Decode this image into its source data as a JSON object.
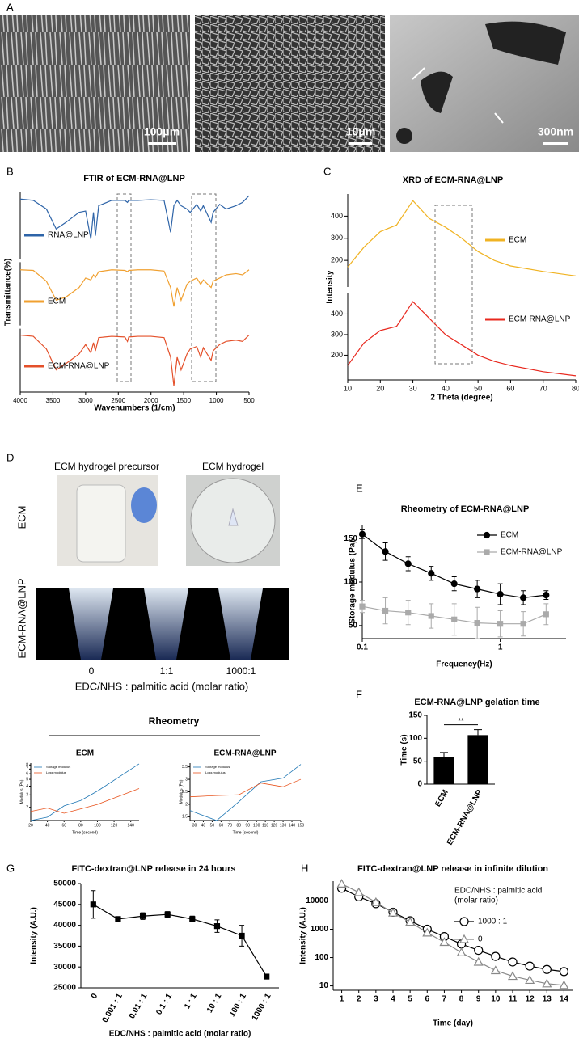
{
  "panel_labels": [
    "A",
    "B",
    "C",
    "D",
    "E",
    "F",
    "G",
    "H"
  ],
  "images": {
    "scale_bars": [
      "100μm",
      "10μm",
      "300nm"
    ],
    "photo_titles": [
      "ECM hydrogel precursor",
      "ECM hydrogel"
    ],
    "row_labels": [
      "ECM",
      "ECM-RNA@LNP"
    ],
    "tube_labels": [
      "0",
      "1:1",
      "1000:1"
    ],
    "tube_caption": "EDC/NHS : palmitic acid (molar ratio)",
    "section_title": "Rheometry"
  },
  "chart_data": [
    {
      "type": "line",
      "subplots": true,
      "title": "FTIR of ECM-RNA@LNP",
      "xlabel": "Wavenumbers (1/cm)",
      "ylabel": "Transmittance(%)",
      "xlim": [
        4000,
        500
      ],
      "xticks": [
        4000,
        3500,
        3000,
        2500,
        2000,
        1500,
        1000,
        500
      ],
      "ylim": [
        0,
        100
      ],
      "x": [
        4000,
        3800,
        3600,
        3450,
        3300,
        3100,
        3000,
        2920,
        2880,
        2850,
        2800,
        2600,
        2400,
        2360,
        2340,
        2200,
        2000,
        1800,
        1700,
        1650,
        1600,
        1540,
        1450,
        1400,
        1300,
        1240,
        1200,
        1080,
        1050,
        950,
        850,
        700,
        600,
        500
      ],
      "series": [
        {
          "name": "RNA@LNP",
          "color": "#2e64a8",
          "values": [
            90,
            88,
            75,
            45,
            55,
            70,
            72,
            30,
            70,
            35,
            80,
            88,
            88,
            85,
            88,
            88,
            89,
            88,
            40,
            80,
            88,
            80,
            75,
            70,
            82,
            72,
            80,
            55,
            70,
            82,
            75,
            80,
            85,
            95
          ]
        },
        {
          "name": "ECM",
          "color": "#f0a030",
          "values": [
            88,
            87,
            70,
            40,
            45,
            60,
            75,
            72,
            80,
            76,
            85,
            88,
            87,
            85,
            87,
            88,
            88,
            86,
            60,
            30,
            60,
            40,
            65,
            70,
            75,
            65,
            72,
            60,
            70,
            75,
            80,
            82,
            80,
            88
          ]
        },
        {
          "name": "ECM-RNA@LNP",
          "color": "#e4502a",
          "values": [
            90,
            88,
            68,
            35,
            45,
            60,
            75,
            62,
            78,
            65,
            86,
            88,
            87,
            80,
            87,
            88,
            88,
            86,
            55,
            10,
            55,
            35,
            60,
            68,
            72,
            55,
            70,
            50,
            65,
            75,
            80,
            82,
            80,
            90
          ]
        }
      ]
    },
    {
      "type": "line",
      "subplots": true,
      "title": "XRD of ECM-RNA@LNP",
      "xlabel": "2 Theta (degree)",
      "ylabel": "Intensity",
      "xlim": [
        10,
        80
      ],
      "xticks": [
        10,
        20,
        30,
        40,
        50,
        60,
        70,
        80
      ],
      "ylim": [
        80,
        500
      ],
      "yticks": [
        200,
        300,
        400
      ],
      "x": [
        10,
        15,
        20,
        25,
        30,
        35,
        40,
        45,
        50,
        55,
        60,
        70,
        80
      ],
      "series": [
        {
          "name": "ECM",
          "color": "#f0b323",
          "values": [
            170,
            260,
            330,
            360,
            470,
            390,
            350,
            300,
            240,
            200,
            175,
            150,
            130
          ]
        },
        {
          "name": "ECM-RNA@LNP",
          "color": "#e8281e",
          "values": [
            150,
            260,
            320,
            340,
            460,
            380,
            300,
            250,
            200,
            170,
            150,
            120,
            100
          ]
        }
      ]
    },
    {
      "type": "line",
      "title": "ECM",
      "xlabel": "Time (second)",
      "ylabel": "Modulus (Pa)",
      "xlim": [
        20,
        150
      ],
      "xticks": [
        20,
        40,
        60,
        80,
        100,
        120,
        140
      ],
      "ylog": true,
      "ylim": [
        1.3,
        8.5
      ],
      "yticks": [
        2,
        3,
        4,
        5,
        6,
        7,
        8
      ],
      "x": [
        20,
        40,
        60,
        80,
        100,
        150
      ],
      "series": [
        {
          "name": "Storage modulus",
          "color": "#1f77b4",
          "values": [
            1.3,
            1.45,
            2.1,
            2.5,
            3.4,
            8.3
          ]
        },
        {
          "name": "Loss modulus",
          "color": "#e8541e",
          "values": [
            1.75,
            1.95,
            1.65,
            1.9,
            2.2,
            3.7
          ]
        }
      ]
    },
    {
      "type": "line",
      "title": "ECM-RNA@LNP",
      "xlabel": "Time (second)",
      "ylabel": "Modulus (Pa)",
      "xlim": [
        25,
        150
      ],
      "xticks": [
        30,
        40,
        50,
        60,
        70,
        80,
        90,
        100,
        110,
        120,
        130,
        140,
        150
      ],
      "ylim": [
        1.35,
        3.65
      ],
      "yticks": [
        1.5,
        2,
        2.5,
        3,
        3.5
      ],
      "x": [
        25,
        55,
        80,
        105,
        130,
        150
      ],
      "series": [
        {
          "name": "Storage modulus",
          "color": "#1f77b4",
          "values": [
            1.75,
            1.35,
            2.1,
            2.9,
            3.05,
            3.6
          ]
        },
        {
          "name": "Loss modulus",
          "color": "#e8541e",
          "values": [
            2.3,
            2.35,
            2.38,
            2.85,
            2.7,
            3.0
          ]
        }
      ]
    },
    {
      "type": "line",
      "title": "Rheometry of ECM-RNA@LNP",
      "xlabel": "Frequency(Hz)",
      "ylabel": "Storage modulus (Pa)",
      "xlog": true,
      "xlim": [
        0.1,
        3
      ],
      "xticks": [
        0.1,
        1
      ],
      "ylim": [
        35,
        165
      ],
      "yticks": [
        50,
        100,
        150
      ],
      "x": [
        0.1,
        0.147,
        0.215,
        0.316,
        0.464,
        0.681,
        1,
        1.47,
        2.15
      ],
      "series": [
        {
          "name": "ECM",
          "color": "#000000",
          "marker": "circle",
          "marker_filled": true,
          "values": [
            155,
            135,
            121,
            110,
            98,
            92,
            86,
            82,
            85
          ],
          "errors": [
            5,
            10,
            8,
            8,
            8,
            10,
            12,
            8,
            5
          ]
        },
        {
          "name": "ECM-RNA@LNP",
          "color": "#aaaaaa",
          "marker": "square",
          "marker_filled": true,
          "values": [
            72,
            67,
            65,
            61,
            57,
            53,
            52,
            52,
            63
          ],
          "errors": [
            7,
            15,
            14,
            14,
            18,
            18,
            15,
            14,
            12
          ]
        }
      ]
    },
    {
      "type": "bar",
      "title": "ECM-RNA@LNP gelation time",
      "ylabel": "Time (s)",
      "categories": [
        "ECM",
        "ECM-RNA@LNP"
      ],
      "values": [
        60,
        107
      ],
      "errors": [
        9,
        12
      ],
      "color": "#000000",
      "ylim": [
        0,
        150
      ],
      "yticks": [
        0,
        50,
        100,
        150
      ],
      "annotation": "**"
    },
    {
      "type": "line",
      "title": "FITC-dextran@LNP release in 24 hours",
      "xlabel": "EDC/NHS : palmitic acid (molar ratio)",
      "ylabel": "Intensity (A.U.)",
      "ylim": [
        25000,
        50000
      ],
      "yticks": [
        25000,
        30000,
        35000,
        40000,
        45000,
        50000
      ],
      "categories": [
        "0",
        "0.001 : 1",
        "0.01 : 1",
        "0.1 : 1",
        "1 : 1",
        "10 : 1",
        "100 : 1",
        "1000 : 1"
      ],
      "series": [
        {
          "color": "#000000",
          "marker": "square",
          "marker_filled": true,
          "values": [
            45000,
            41500,
            42200,
            42600,
            41500,
            39800,
            37500,
            27700
          ],
          "errors": [
            3300,
            500,
            800,
            700,
            700,
            1500,
            2500,
            150
          ]
        }
      ]
    },
    {
      "type": "line",
      "title": "FITC-dextran@LNP release in infinite dilution",
      "xlabel": "Time (day)",
      "ylabel": "Intensity (A.U.)",
      "ylog": true,
      "ylim": [
        7,
        50000
      ],
      "yticks": [
        10,
        100,
        1000,
        10000
      ],
      "xlim": [
        0.5,
        14.5
      ],
      "xticks": [
        1,
        2,
        3,
        4,
        5,
        6,
        7,
        8,
        9,
        10,
        11,
        12,
        13,
        14
      ],
      "legend_title": [
        "EDC/NHS : palmitic acid",
        "(molar ratio)"
      ],
      "x": [
        1,
        2,
        3,
        4,
        5,
        6,
        7,
        8,
        9,
        10,
        11,
        12,
        13,
        14
      ],
      "series": [
        {
          "name": "1000 : 1",
          "color": "#000000",
          "marker": "circle",
          "marker_filled": false,
          "values": [
            28000,
            14000,
            8000,
            4000,
            2000,
            1000,
            550,
            300,
            180,
            110,
            70,
            50,
            38,
            32
          ]
        },
        {
          "name": "0",
          "color": "#888888",
          "marker": "triangle",
          "marker_filled": false,
          "values": [
            40000,
            20000,
            9000,
            3800,
            1800,
            750,
            350,
            150,
            70,
            35,
            22,
            16,
            12,
            10.5
          ]
        }
      ]
    }
  ]
}
